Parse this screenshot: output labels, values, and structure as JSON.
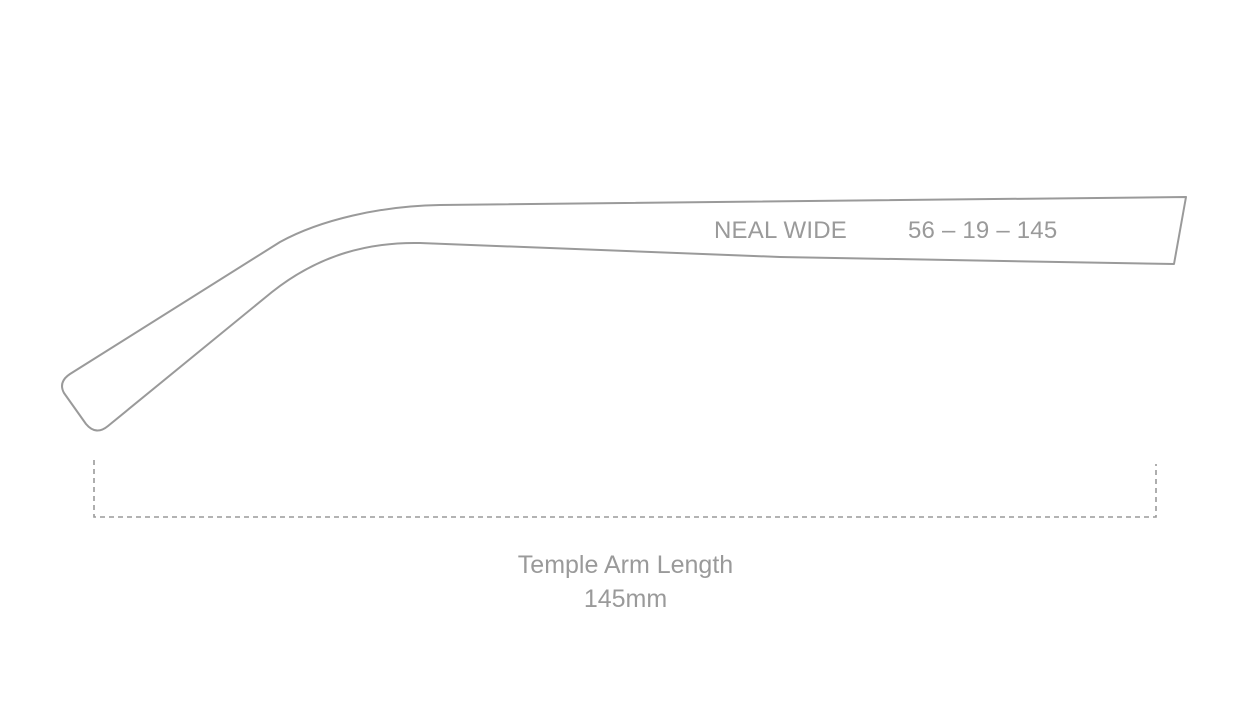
{
  "temple_arm": {
    "model_name": "NEAL WIDE",
    "size_code": "56 – 19 – 145"
  },
  "measurement": {
    "label": "Temple Arm Length",
    "value": "145mm"
  },
  "colors": {
    "outline": "#9a9a9a",
    "text": "#9a9a9a",
    "background": "#ffffff"
  }
}
